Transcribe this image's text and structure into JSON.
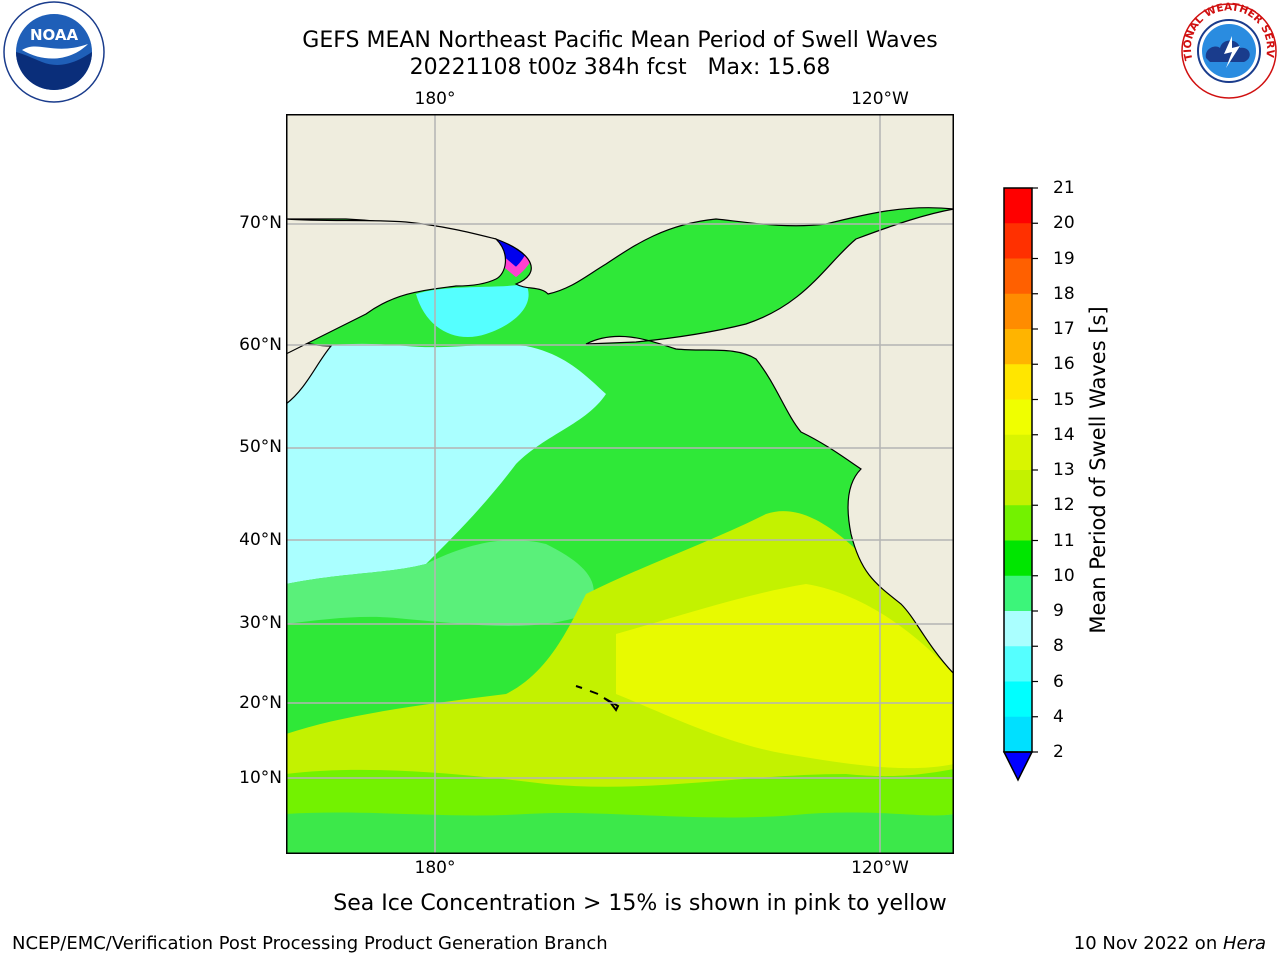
{
  "title": {
    "line1": "GEFS MEAN Northeast Pacific Mean Period of Swell Waves",
    "line2": "20221108 t00z 384h fcst   Max: 15.68"
  },
  "map": {
    "lat_labels": [
      "70°N",
      "60°N",
      "50°N",
      "40°N",
      "30°N",
      "20°N",
      "10°N"
    ],
    "lon_labels_top": [
      "180°",
      "120°W"
    ],
    "lon_labels_bottom": [
      "180°",
      "120°W"
    ],
    "colors": {
      "land": "#efedde",
      "grid": "#b4b4b4",
      "ice": "#0000ee"
    }
  },
  "colorbar": {
    "label": "Mean Period of Swell Waves [s]",
    "ticks": [
      "21",
      "20",
      "19",
      "18",
      "17",
      "16",
      "15",
      "14",
      "13",
      "12",
      "11",
      "10",
      "9",
      "8",
      "6",
      "4",
      "2"
    ],
    "colors": [
      "#ff0000",
      "#ff3000",
      "#ff6000",
      "#ff8c00",
      "#ffb400",
      "#ffe600",
      "#f0ff00",
      "#d9f500",
      "#c3f200",
      "#73f200",
      "#00e600",
      "#3cf57a",
      "#aaffff",
      "#55ffff",
      "#00ffff",
      "#00e0ff",
      "#0078ff",
      "#0000ff"
    ]
  },
  "notes": {
    "ice": "Sea Ice Concentration > 15% is shown in pink to yellow"
  },
  "footer": {
    "left": "NCEP/EMC/Verification Post Processing Product Generation Branch",
    "date": "10 Nov 2022 on ",
    "host": "Hera"
  },
  "logos": {
    "noaa_text": "NOAA",
    "nws_text": "NATIONAL WEATHER SERVICE"
  }
}
